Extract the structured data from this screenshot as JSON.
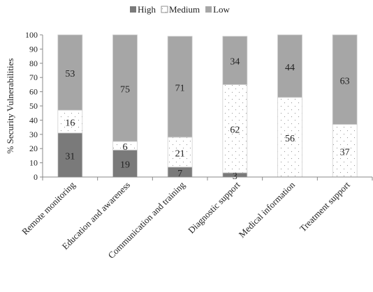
{
  "chart_data": {
    "type": "bar",
    "stacked": true,
    "title": "",
    "ylabel": "% Security Vulnerabilities",
    "xlabel": "",
    "ylim": [
      0,
      100
    ],
    "yticks": [
      0,
      10,
      20,
      30,
      40,
      50,
      60,
      70,
      80,
      90,
      100
    ],
    "legend_position": "top",
    "categories": [
      "Remote monitoring",
      "Education and awareness",
      "Communication and training",
      "Diagnostic support",
      "Medical information",
      "Treatment support"
    ],
    "series": [
      {
        "name": "High",
        "values": [
          31,
          19,
          7,
          3,
          0,
          0
        ],
        "color": "#7a7a7a",
        "pattern": "solid"
      },
      {
        "name": "Medium",
        "values": [
          16,
          6,
          21,
          62,
          56,
          37
        ],
        "color": "#ffffff",
        "pattern": "dots"
      },
      {
        "name": "Low",
        "values": [
          53,
          75,
          71,
          34,
          44,
          63
        ],
        "color": "#a6a6a6",
        "pattern": "solid"
      }
    ]
  }
}
